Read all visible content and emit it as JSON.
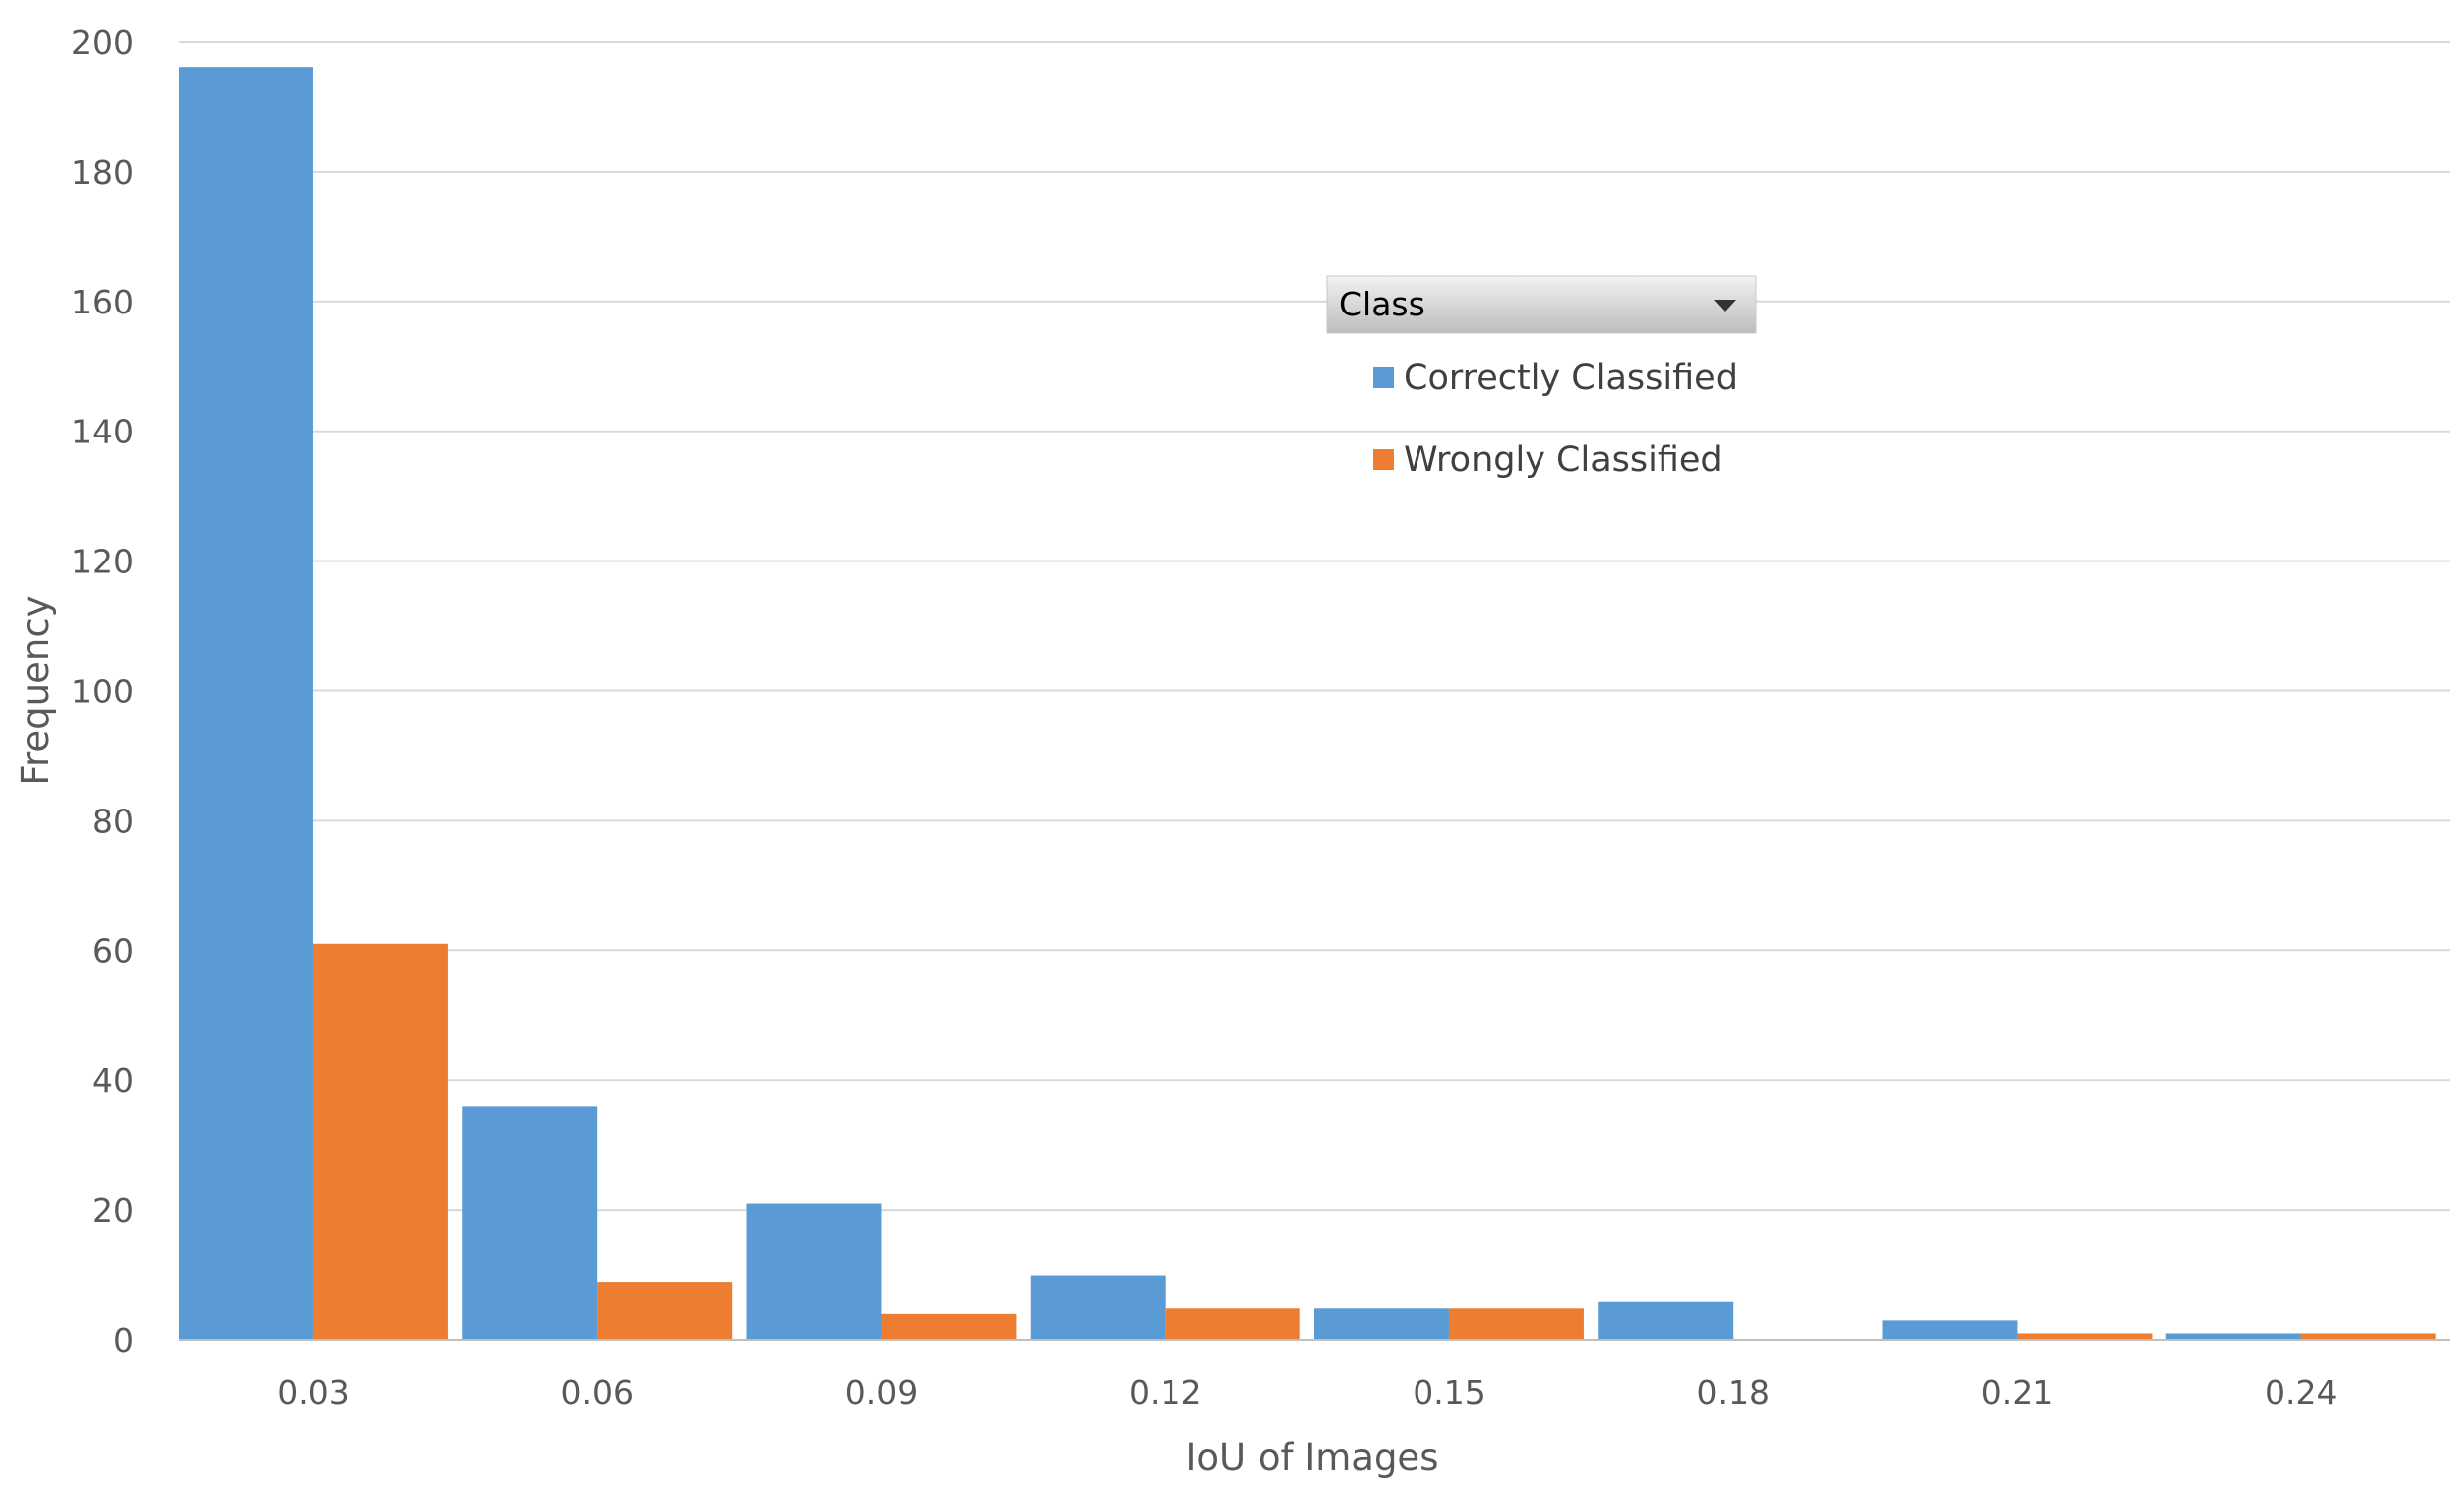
{
  "chart_data": {
    "type": "bar",
    "categories": [
      "0.03",
      "0.06",
      "0.09",
      "0.12",
      "0.15",
      "0.18",
      "0.21",
      "0.24"
    ],
    "series": [
      {
        "name": "Correctly Classified",
        "color": "#5B9BD5",
        "values": [
          196,
          36,
          21,
          10,
          5,
          6,
          3,
          1
        ]
      },
      {
        "name": "Wrongly Classified",
        "color": "#ED7D31",
        "values": [
          61,
          9,
          4,
          5,
          5,
          0,
          1,
          1
        ]
      }
    ],
    "xlabel": "IoU of Images",
    "ylabel": "Frequency",
    "ylim": [
      0,
      200
    ],
    "yticks": [
      0,
      20,
      40,
      60,
      80,
      100,
      120,
      140,
      160,
      180,
      200
    ],
    "grid": true,
    "legend": {
      "title": "Class",
      "dropdown_icon": "caret-down-icon",
      "placement": "top-center"
    }
  }
}
